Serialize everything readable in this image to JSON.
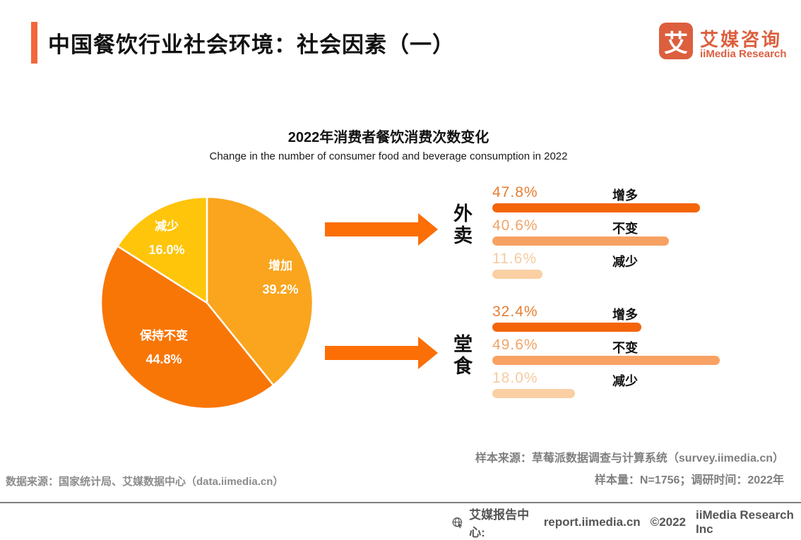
{
  "page": {
    "title": "中国餐饮行业社会环境：社会因素（一）",
    "accent_color": "#F2673C"
  },
  "logo": {
    "glyph": "艾",
    "name_cn": "艾媒咨询",
    "name_en": "iiMedia Research",
    "color": "#DC5F3E"
  },
  "chart_data": {
    "type": "pie",
    "title": "2022年消费者餐饮消费次数变化",
    "subtitle": "Change in the number of consumer food and beverage consumption in 2022",
    "pie": {
      "start_angle": "top, clockwise",
      "slices": [
        {
          "label": "增加",
          "value": 39.2,
          "value_label": "39.2%",
          "color": "#FAA51D"
        },
        {
          "label": "保持不变",
          "value": 44.8,
          "value_label": "44.8%",
          "color": "#F87606"
        },
        {
          "label": "减少",
          "value": 16.0,
          "value_label": "16.0%",
          "color": "#FEC50A"
        }
      ]
    },
    "bar_groups": [
      {
        "category": "外卖",
        "rows": [
          {
            "label": "增多",
            "value": 47.8,
            "value_label": "47.8%"
          },
          {
            "label": "不变",
            "value": 40.6,
            "value_label": "40.6%"
          },
          {
            "label": "减少",
            "value": 11.6,
            "value_label": "11.6%"
          }
        ]
      },
      {
        "category": "堂食",
        "rows": [
          {
            "label": "增多",
            "value": 32.4,
            "value_label": "32.4%"
          },
          {
            "label": "不变",
            "value": 49.6,
            "value_label": "49.6%"
          },
          {
            "label": "减少",
            "value": 18.0,
            "value_label": "18.0%"
          }
        ]
      }
    ],
    "bar_colors": {
      "increase": "#F4650A",
      "same": "#F7A263",
      "decrease": "#FACFA3"
    },
    "pct_colors": {
      "increase": "#E67E33",
      "same": "#F0A468",
      "decrease": "#F5CBA0"
    },
    "arrow_color": "#FB6F06"
  },
  "footnotes": {
    "sample_source": "样本来源：草莓派数据调查与计算系统（survey.iimedia.cn）",
    "sample_size": "样本量：N=1756；调研时间：2022年",
    "data_source": "数据来源：国家统计局、艾媒数据中心（data.iimedia.cn）"
  },
  "footer": {
    "label": "艾媒报告中心:",
    "url": "report.iimedia.cn",
    "copyright": "©2022",
    "company": "iiMedia Research Inc"
  }
}
